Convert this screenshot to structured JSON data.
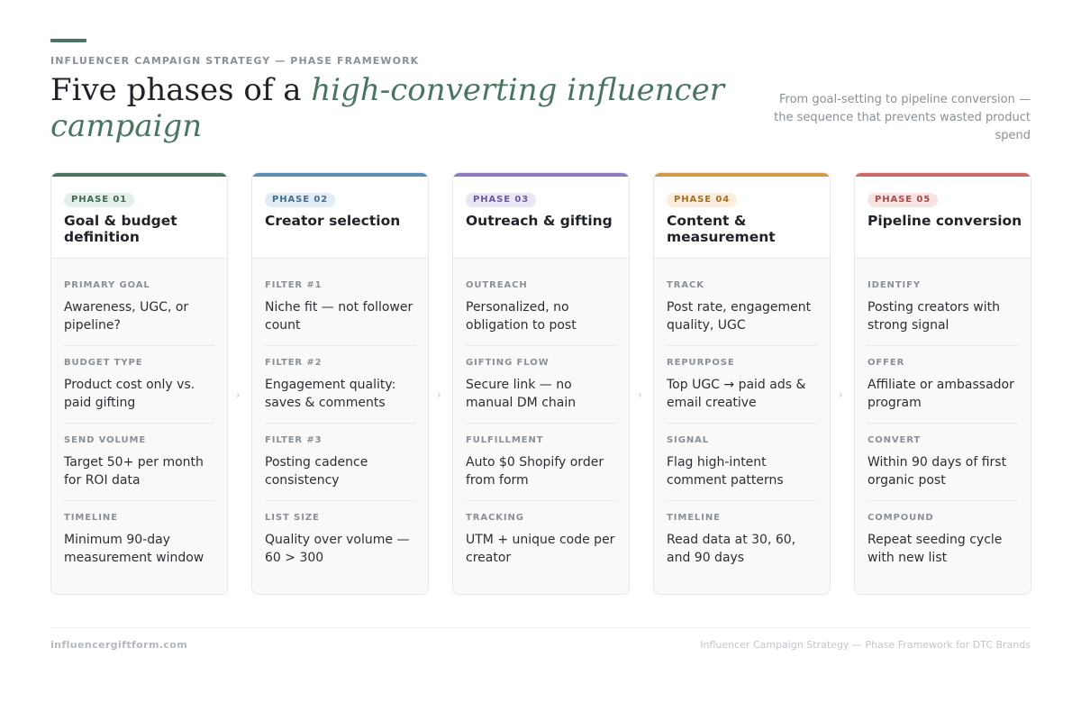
{
  "header": {
    "eyebrow": "INFLUENCER CAMPAIGN STRATEGY — PHASE FRAMEWORK",
    "title_plain": "Five phases of a ",
    "title_emphasis": "high-converting influencer campaign",
    "subtitle": "From goal-setting to pipeline conversion — the sequence that prevents wasted product spend"
  },
  "colors": {
    "accent": "#4a7561"
  },
  "phases": [
    {
      "badge": "PHASE 01",
      "title": "Goal & budget definition",
      "color": "#4a7561",
      "badge_bg": "#e3efe8",
      "badge_fg": "#3f6a55",
      "items": [
        {
          "label": "PRIMARY GOAL",
          "value": "Awareness, UGC, or pipeline?"
        },
        {
          "label": "BUDGET TYPE",
          "value": "Product cost only vs. paid gifting"
        },
        {
          "label": "SEND VOLUME",
          "value": "Target 50+ per month for ROI data"
        },
        {
          "label": "TIMELINE",
          "value": "Minimum 90-day measurement window"
        }
      ]
    },
    {
      "badge": "PHASE 02",
      "title": "Creator selection",
      "color": "#5b8db5",
      "badge_bg": "#e2ecf5",
      "badge_fg": "#466e8e",
      "items": [
        {
          "label": "FILTER #1",
          "value": "Niche fit — not follower count"
        },
        {
          "label": "FILTER #2",
          "value": "Engagement quality: saves & comments"
        },
        {
          "label": "FILTER #3",
          "value": "Posting cadence consistency"
        },
        {
          "label": "LIST SIZE",
          "value": "Quality over volume — 60 > 300"
        }
      ]
    },
    {
      "badge": "PHASE 03",
      "title": "Outreach & gifting",
      "color": "#8e7cc3",
      "badge_bg": "#ebe6f5",
      "badge_fg": "#6a5a9c",
      "items": [
        {
          "label": "OUTREACH",
          "value": "Personalized, no obligation to post"
        },
        {
          "label": "GIFTING FLOW",
          "value": "Secure link — no manual DM chain"
        },
        {
          "label": "FULFILLMENT",
          "value": "Auto $0 Shopify order from form"
        },
        {
          "label": "TRACKING",
          "value": "UTM + unique code per creator"
        }
      ]
    },
    {
      "badge": "PHASE 04",
      "title": "Content & measurement",
      "color": "#d49a4a",
      "badge_bg": "#fbeedc",
      "badge_fg": "#a66f28",
      "items": [
        {
          "label": "TRACK",
          "value": "Post rate, engagement quality, UGC"
        },
        {
          "label": "REPURPOSE",
          "value": "Top UGC → paid ads & email creative"
        },
        {
          "label": "SIGNAL",
          "value": "Flag high-intent comment patterns"
        },
        {
          "label": "TIMELINE",
          "value": "Read data at 30, 60, and 90 days"
        }
      ]
    },
    {
      "badge": "PHASE 05",
      "title": "Pipeline conversion",
      "color": "#cc6a6a",
      "badge_bg": "#f8e3e3",
      "badge_fg": "#a84b4b",
      "items": [
        {
          "label": "IDENTIFY",
          "value": "Posting creators with strong signal"
        },
        {
          "label": "OFFER",
          "value": "Affiliate or ambassador program"
        },
        {
          "label": "CONVERT",
          "value": "Within 90 days of first organic post"
        },
        {
          "label": "COMPOUND",
          "value": "Repeat seeding cycle with new list"
        }
      ]
    }
  ],
  "connector_glyph": "›",
  "footer": {
    "left": "influencergiftform.com",
    "right": "Influencer Campaign Strategy — Phase Framework for DTC Brands"
  }
}
